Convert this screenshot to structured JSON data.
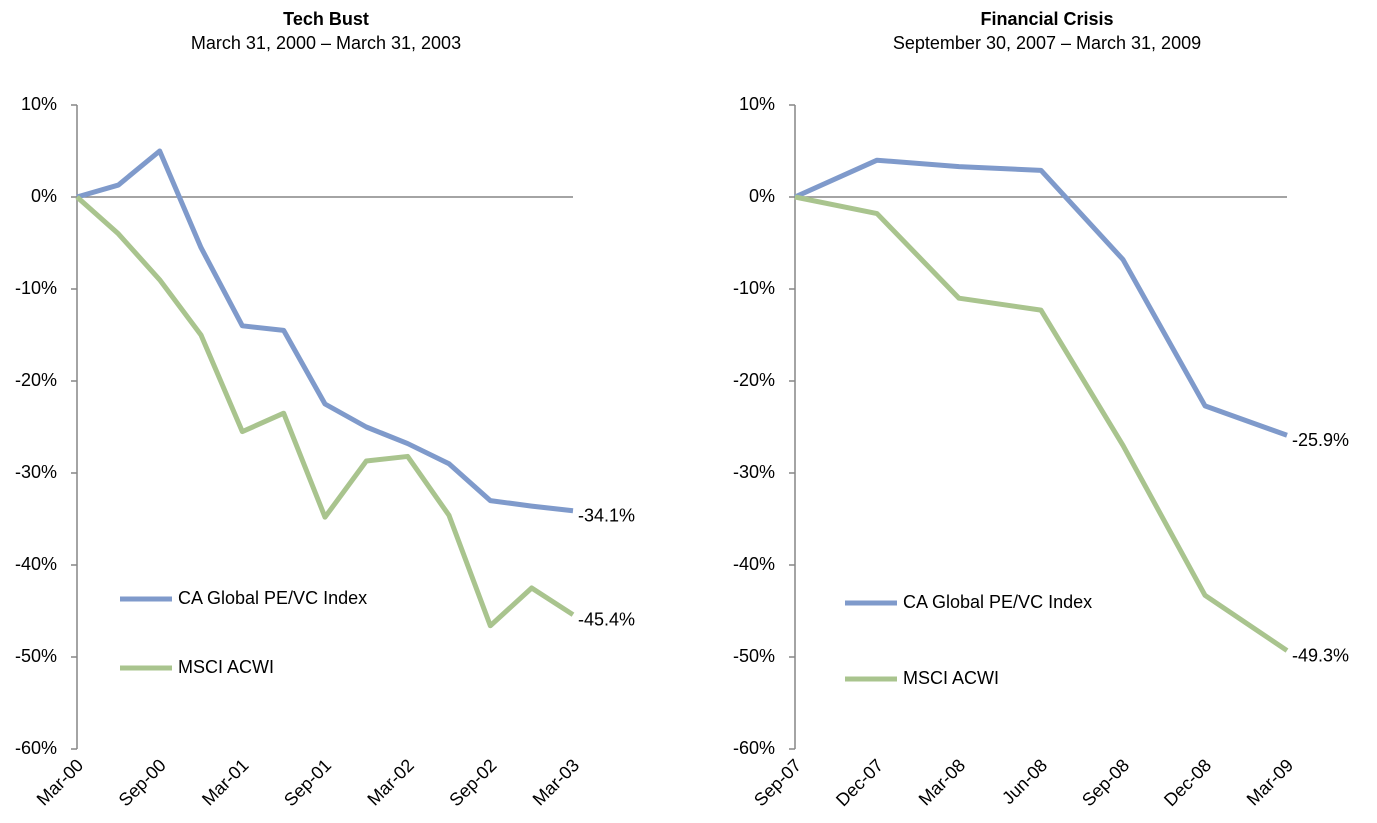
{
  "chart_data": [
    {
      "type": "line",
      "title": "Tech Bust",
      "subtitle": "March 31, 2000 – March 31, 2003",
      "categories": [
        "Mar-00",
        null,
        "Sep-00",
        null,
        "Mar-01",
        null,
        "Sep-01",
        null,
        "Mar-02",
        null,
        "Sep-02",
        null,
        "Mar-03"
      ],
      "series": [
        {
          "name": "CA Global PE/VC Index",
          "color": "#7f9acb",
          "values": [
            0,
            1.3,
            5,
            -5.5,
            -14,
            -14.5,
            -22.5,
            -25,
            -26.8,
            -29,
            -33,
            -33.6,
            -34.1
          ],
          "value_labels": [
            null,
            null,
            null,
            null,
            null,
            null,
            null,
            null,
            null,
            null,
            null,
            null,
            "-34.1%"
          ]
        },
        {
          "name": "MSCI ACWI",
          "color": "#a9c48e",
          "values": [
            0,
            -4,
            -9,
            -15,
            -25.5,
            -23.5,
            -34.8,
            -28.7,
            -28.2,
            -34.6,
            -46.6,
            -42.5,
            -45.4
          ],
          "value_labels": [
            null,
            null,
            null,
            null,
            null,
            null,
            null,
            null,
            null,
            null,
            null,
            null,
            "-45.4%"
          ]
        }
      ],
      "ylim": [
        -60,
        10
      ],
      "yticks": [
        {
          "value": -60,
          "label": "-60%"
        },
        {
          "value": -50,
          "label": "-50%"
        },
        {
          "value": -40,
          "label": "-40%"
        },
        {
          "value": -30,
          "label": "-30%"
        },
        {
          "value": -20,
          "label": "-20%"
        },
        {
          "value": -10,
          "label": "-10%"
        },
        {
          "value": 0,
          "label": "0%"
        },
        {
          "value": 10,
          "label": "10%"
        }
      ]
    },
    {
      "type": "line",
      "title": "Financial Crisis",
      "subtitle": "September 30, 2007 – March 31, 2009",
      "categories": [
        "Sep-07",
        "Dec-07",
        "Mar-08",
        "Jun-08",
        "Sep-08",
        "Dec-08",
        "Mar-09"
      ],
      "series": [
        {
          "name": "CA Global PE/VC Index",
          "color": "#7f9acb",
          "values": [
            0,
            4,
            3.3,
            2.9,
            -6.8,
            -22.7,
            -25.9
          ],
          "value_labels": [
            null,
            null,
            null,
            null,
            null,
            null,
            "-25.9%"
          ]
        },
        {
          "name": "MSCI ACWI",
          "color": "#a9c48e",
          "values": [
            0,
            -1.8,
            -11,
            -12.3,
            -27,
            -43.3,
            -49.3
          ],
          "value_labels": [
            null,
            null,
            null,
            null,
            null,
            null,
            "-49.3%"
          ]
        }
      ],
      "ylim": [
        -60,
        10
      ],
      "yticks": [
        {
          "value": -60,
          "label": "-60%"
        },
        {
          "value": -50,
          "label": "-50%"
        },
        {
          "value": -40,
          "label": "-40%"
        },
        {
          "value": -30,
          "label": "-30%"
        },
        {
          "value": -20,
          "label": "-20%"
        },
        {
          "value": -10,
          "label": "-10%"
        },
        {
          "value": 0,
          "label": "0%"
        },
        {
          "value": 10,
          "label": "10%"
        }
      ]
    }
  ]
}
